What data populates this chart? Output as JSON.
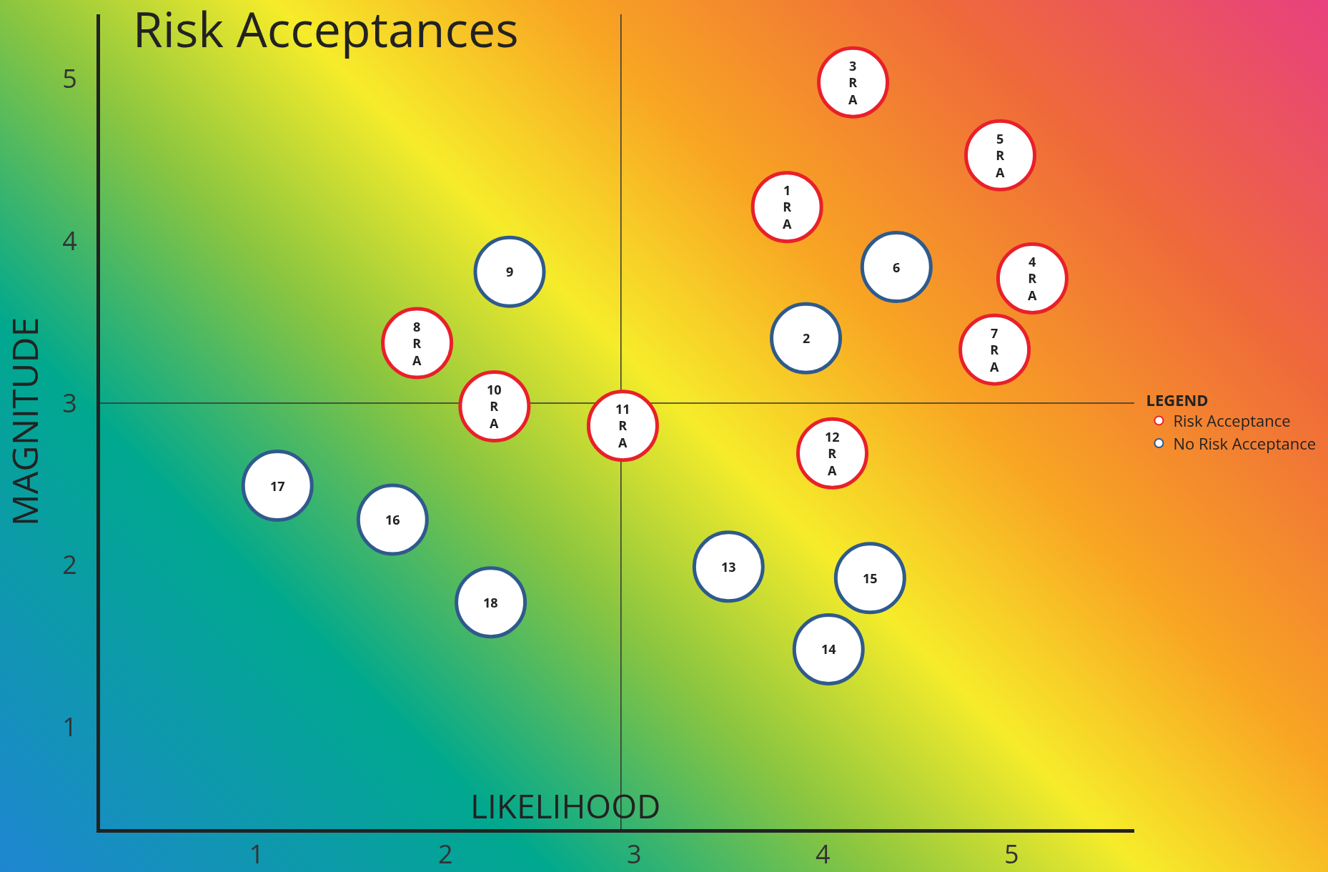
{
  "chart_data": {
    "type": "scatter",
    "title": "Risk Acceptances",
    "xlabel": "LIKELIHOOD",
    "ylabel": "MAGNITUDE",
    "legend_title": "LEGEND",
    "legend": "right",
    "marker": "circle",
    "grid": false,
    "xlim": [
      0.17,
      5.65
    ],
    "xticks": [
      1,
      2,
      3,
      4,
      5
    ],
    "ylim": [
      0.37,
      5.4
    ],
    "yticks": [
      1,
      2,
      3,
      4,
      5
    ],
    "ref_lines": [
      {
        "axis": "x",
        "value": 2.93,
        "color": "#333333"
      },
      {
        "axis": "y",
        "value": 3,
        "color": "#333333"
      }
    ],
    "series": [
      {
        "name": "Risk Acceptance",
        "color": "#e8202a",
        "x": [
          4.16,
          4.94,
          3.81,
          5.11,
          4.91,
          1.85,
          2.26,
          2.94,
          4.05
        ],
        "values": [
          4.98,
          4.53,
          4.21,
          3.77,
          3.33,
          3.37,
          2.98,
          2.86,
          2.69
        ]
      },
      {
        "name": "No Risk Acceptance",
        "color": "#2f5a8c",
        "x": [
          4.39,
          2.34,
          3.91,
          1.11,
          1.72,
          3.5,
          4.25,
          2.24,
          4.03
        ],
        "values": [
          3.84,
          3.81,
          3.4,
          2.49,
          2.28,
          1.99,
          1.92,
          1.77,
          1.48
        ]
      }
    ],
    "annotations": [
      {
        "text": "3\nR\nA",
        "x": 4.16,
        "y": 4.98
      },
      {
        "text": "5\nR\nA",
        "x": 4.94,
        "y": 4.53
      },
      {
        "text": "1\nR\nA",
        "x": 3.81,
        "y": 4.21
      },
      {
        "text": "4\nR\nA",
        "x": 5.11,
        "y": 3.77
      },
      {
        "text": "7\nR\nA",
        "x": 4.91,
        "y": 3.33
      },
      {
        "text": "8\nR\nA",
        "x": 1.85,
        "y": 3.37
      },
      {
        "text": "10\nR\nA",
        "x": 2.26,
        "y": 2.98
      },
      {
        "text": "11\nR\nA",
        "x": 2.94,
        "y": 2.86
      },
      {
        "text": "12\nR\nA",
        "x": 4.05,
        "y": 2.69
      },
      {
        "text": "6",
        "x": 4.39,
        "y": 3.84
      },
      {
        "text": "9",
        "x": 2.34,
        "y": 3.81
      },
      {
        "text": "2",
        "x": 3.91,
        "y": 3.4
      },
      {
        "text": "17",
        "x": 1.11,
        "y": 2.49
      },
      {
        "text": "16",
        "x": 1.72,
        "y": 2.28
      },
      {
        "text": "13",
        "x": 3.5,
        "y": 1.99
      },
      {
        "text": "15",
        "x": 4.25,
        "y": 1.92
      },
      {
        "text": "18",
        "x": 2.24,
        "y": 1.77
      },
      {
        "text": "14",
        "x": 4.03,
        "y": 1.48
      }
    ]
  }
}
